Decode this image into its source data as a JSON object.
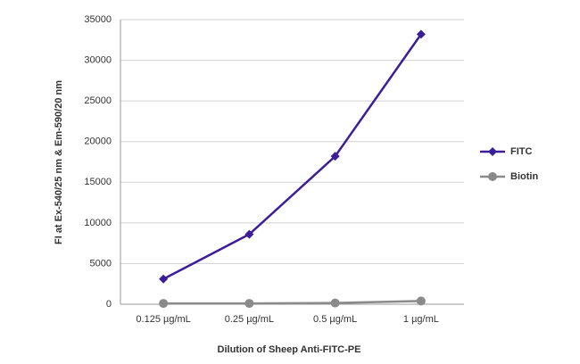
{
  "chart_data": {
    "type": "line",
    "x_label": "Dilution of Sheep Anti-FITC-PE",
    "y_label": "FI at Ex-540/25 nm & Em-590/20 nm",
    "categories": [
      "0.125 µg/mL",
      "0.25 µg/mL",
      "0.5 µg/mL",
      "1 µg/mL"
    ],
    "series": [
      {
        "name": "FITC",
        "color": "#3b1f99",
        "marker": "diamond",
        "values": [
          3100,
          8600,
          18200,
          33200
        ]
      },
      {
        "name": "Biotin",
        "color": "#8a8a8a",
        "marker": "circle",
        "values": [
          100,
          100,
          150,
          400
        ]
      }
    ],
    "ylim": [
      0,
      35000
    ],
    "yticks": [
      0,
      5000,
      10000,
      15000,
      20000,
      25000,
      30000,
      35000
    ],
    "grid": true,
    "legend": "right"
  }
}
